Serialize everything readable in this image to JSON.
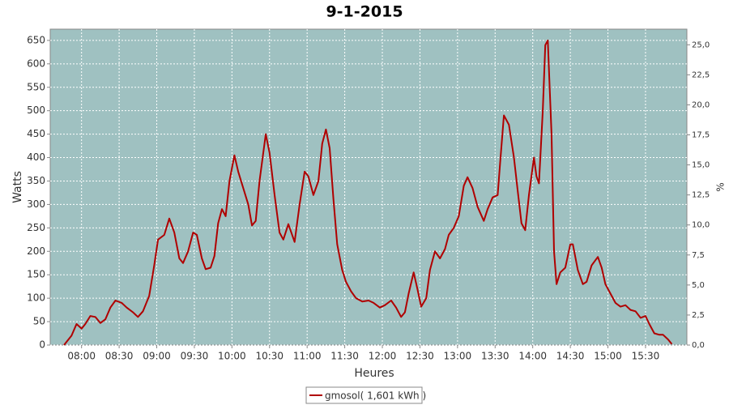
{
  "chart_data": {
    "type": "line",
    "title": "9-1-2015",
    "x_label": "Heures",
    "y_label": "Watts",
    "y2_label": "%",
    "x": [
      "07:46",
      "07:52",
      "07:56",
      "08:00",
      "08:03",
      "08:07",
      "08:11",
      "08:15",
      "08:19",
      "08:23",
      "08:27",
      "08:32",
      "08:36",
      "08:41",
      "08:45",
      "08:49",
      "08:54",
      "08:58",
      "09:01",
      "09:06",
      "09:10",
      "09:14",
      "09:18",
      "09:21",
      "09:25",
      "09:29",
      "09:32",
      "09:36",
      "09:39",
      "09:43",
      "09:46",
      "09:49",
      "09:52",
      "09:55",
      "09:58",
      "10:02",
      "10:05",
      "10:09",
      "10:13",
      "10:16",
      "10:19",
      "10:22",
      "10:27",
      "10:30",
      "10:34",
      "10:38",
      "10:41",
      "10:45",
      "10:50",
      "10:54",
      "10:58",
      "11:01",
      "11:05",
      "11:09",
      "11:12",
      "11:15",
      "11:18",
      "11:21",
      "11:24",
      "11:28",
      "11:31",
      "11:35",
      "11:39",
      "11:44",
      "11:49",
      "11:53",
      "11:58",
      "12:02",
      "12:07",
      "12:11",
      "12:15",
      "12:18",
      "12:21",
      "12:25",
      "12:28",
      "12:31",
      "12:35",
      "12:38",
      "12:42",
      "12:46",
      "12:50",
      "12:53",
      "12:57",
      "13:01",
      "13:05",
      "13:08",
      "13:12",
      "13:16",
      "13:21",
      "13:24",
      "13:28",
      "13:32",
      "13:34",
      "13:37",
      "13:41",
      "13:45",
      "13:48",
      "13:51",
      "13:54",
      "13:57",
      "14:01",
      "14:03",
      "14:05",
      "14:08",
      "14:10",
      "14:12",
      "14:15",
      "14:17",
      "14:19",
      "14:22",
      "14:26",
      "14:30",
      "14:32",
      "14:36",
      "14:40",
      "14:43",
      "14:47",
      "14:52",
      "14:55",
      "14:58",
      "15:02",
      "15:06",
      "15:10",
      "15:14",
      "15:18",
      "15:22",
      "15:26",
      "15:30",
      "15:33",
      "15:37",
      "15:41",
      "15:44",
      "15:48",
      "15:51"
    ],
    "series": [
      {
        "name": "gmosol( 1,601 kWh )",
        "color": "#b00000",
        "values": [
          0,
          20,
          45,
          35,
          45,
          62,
          60,
          47,
          55,
          80,
          95,
          90,
          80,
          70,
          60,
          72,
          105,
          170,
          225,
          235,
          270,
          240,
          185,
          175,
          200,
          240,
          235,
          185,
          162,
          165,
          190,
          260,
          290,
          275,
          350,
          405,
          370,
          335,
          300,
          255,
          265,
          350,
          450,
          410,
          320,
          240,
          225,
          258,
          220,
          300,
          370,
          360,
          320,
          350,
          430,
          460,
          420,
          310,
          215,
          160,
          135,
          115,
          100,
          93,
          95,
          90,
          80,
          85,
          95,
          80,
          60,
          70,
          110,
          155,
          120,
          82,
          100,
          160,
          200,
          185,
          205,
          235,
          250,
          275,
          340,
          358,
          335,
          295,
          265,
          290,
          315,
          320,
          390,
          490,
          470,
          400,
          330,
          260,
          245,
          320,
          400,
          360,
          345,
          500,
          640,
          650,
          450,
          200,
          130,
          155,
          165,
          215,
          215,
          160,
          130,
          135,
          170,
          188,
          165,
          130,
          110,
          90,
          82,
          85,
          75,
          72,
          58,
          62,
          45,
          25,
          22,
          22,
          12,
          2
        ]
      }
    ],
    "xlim": [
      "07:35",
      "16:03"
    ],
    "xticks": [
      "08:00",
      "08:30",
      "09:00",
      "09:30",
      "10:00",
      "10:30",
      "11:00",
      "11:30",
      "12:00",
      "12:30",
      "13:00",
      "13:30",
      "14:00",
      "14:30",
      "15:00",
      "15:30"
    ],
    "ylim": [
      0,
      674
    ],
    "yticks": [
      0,
      50,
      100,
      150,
      200,
      250,
      300,
      350,
      400,
      450,
      500,
      550,
      600,
      650
    ],
    "y2lim": [
      0,
      26.3
    ],
    "y2ticks": [
      {
        "value": 0,
        "label": "0,0"
      },
      {
        "value": 2.5,
        "label": "2,5"
      },
      {
        "value": 5,
        "label": "5,0"
      },
      {
        "value": 7.5,
        "label": "7,5"
      },
      {
        "value": 10,
        "label": "10,0"
      },
      {
        "value": 12.5,
        "label": "12,5"
      },
      {
        "value": 15,
        "label": "15,0"
      },
      {
        "value": 17.5,
        "label": "17,5"
      },
      {
        "value": 20,
        "label": "20,0"
      },
      {
        "value": 22.5,
        "label": "22,5"
      },
      {
        "value": 25,
        "label": "25,0"
      }
    ],
    "grid": true,
    "plot_background": "#9fc1c1",
    "legend": "bottom"
  }
}
